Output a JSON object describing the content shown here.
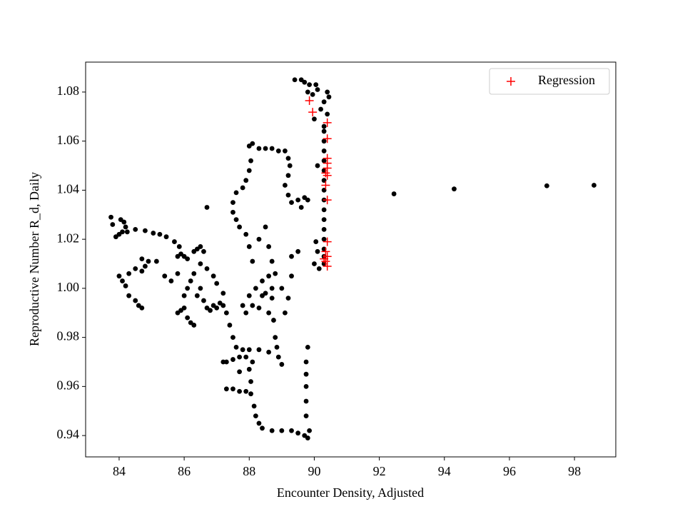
{
  "chart_data": {
    "type": "scatter",
    "x_label": "Encounter Density, Adjusted",
    "y_label": "Reproductive Number R_d, Daily",
    "xlim": [
      82.97,
      99.27
    ],
    "ylim": [
      0.9313,
      1.0922
    ],
    "xticks": [
      84,
      86,
      88,
      90,
      92,
      94,
      96,
      98
    ],
    "yticks": [
      0.94,
      0.96,
      0.98,
      {
        "value": 1.0,
        "label": "1.00"
      },
      1.02,
      1.04,
      1.06,
      1.08
    ],
    "legend": "upper right",
    "series": [
      {
        "color": "#000000",
        "marker": "circle",
        "x": [
          89.4,
          89.6,
          89.7,
          89.85,
          90.05,
          90.1,
          89.95,
          89.8,
          90.4,
          90.45,
          90.3,
          90.2,
          90.4,
          90.0,
          90.3,
          90.3,
          90.3,
          90.3,
          90.3,
          90.3,
          90.3,
          90.3,
          90.3,
          90.3,
          90.3,
          90.3,
          90.3,
          90.3,
          90.3,
          90.3,
          92.45,
          94.3,
          97.15,
          98.6,
          83.75,
          83.8,
          83.9,
          84.0,
          84.05,
          84.15,
          84.2,
          84.25,
          84.1,
          84.5,
          84.8,
          85.05,
          85.25,
          85.45,
          85.7,
          85.85,
          84.0,
          84.1,
          84.2,
          84.3,
          84.3,
          84.5,
          84.6,
          84.7,
          84.5,
          84.7,
          84.8,
          84.9,
          84.7,
          85.15,
          85.4,
          85.6,
          85.8,
          85.8,
          85.9,
          86.0,
          86.1,
          86.3,
          86.4,
          86.5,
          86.6,
          86.7,
          86.3,
          86.2,
          86.1,
          86.0,
          85.9,
          85.8,
          86.0,
          86.1,
          86.2,
          86.3,
          86.4,
          86.5,
          86.6,
          86.7,
          86.8,
          86.9,
          87.0,
          87.1,
          87.2,
          87.3,
          86.9,
          87.0,
          87.2,
          86.7,
          86.5,
          87.4,
          87.5,
          87.6,
          87.7,
          87.5,
          87.3,
          87.2,
          87.8,
          88.0,
          87.9,
          87.7,
          87.3,
          87.5,
          87.7,
          87.9,
          88.05,
          88.15,
          88.2,
          88.3,
          88.4,
          88.7,
          89.0,
          89.3,
          89.5,
          89.7,
          89.8,
          89.85,
          89.75,
          89.75,
          89.75,
          89.75,
          89.75,
          89.8,
          88.05,
          88.0,
          88.1,
          88.3,
          88.6,
          88.9,
          89.0,
          88.85,
          88.8,
          88.75,
          88.6,
          88.3,
          88.1,
          87.9,
          87.8,
          88.0,
          88.2,
          88.4,
          88.6,
          88.8,
          88.7,
          88.5,
          88.4,
          88.7,
          89.0,
          89.2,
          89.3,
          89.1,
          89.3,
          89.5,
          88.7,
          88.6,
          88.5,
          88.3,
          88.1,
          88.0,
          87.9,
          87.7,
          87.6,
          87.5,
          87.5,
          87.6,
          87.8,
          87.9,
          88.0,
          88.05,
          88.0,
          88.1,
          88.3,
          88.5,
          88.7,
          88.9,
          89.1,
          89.2,
          89.25,
          89.2,
          89.1,
          89.2,
          89.3,
          89.5,
          89.7,
          89.8,
          89.6,
          90.1,
          90.0,
          90.15,
          90.1,
          90.05
        ],
        "values": [
          1.085,
          1.085,
          1.084,
          1.083,
          1.083,
          1.081,
          1.079,
          1.08,
          1.08,
          1.078,
          1.076,
          1.073,
          1.071,
          1.069,
          1.066,
          1.064,
          1.06,
          1.056,
          1.052,
          1.048,
          1.044,
          1.04,
          1.036,
          1.032,
          1.028,
          1.024,
          1.02,
          1.016,
          1.013,
          1.01,
          1.0385,
          1.0405,
          1.0418,
          1.042,
          1.029,
          1.026,
          1.021,
          1.022,
          1.028,
          1.027,
          1.025,
          1.023,
          1.023,
          1.024,
          1.0235,
          1.0225,
          1.022,
          1.021,
          1.019,
          1.017,
          1.005,
          1.003,
          1.001,
          1.006,
          0.997,
          0.995,
          0.993,
          0.992,
          1.008,
          1.012,
          1.009,
          1.011,
          1.007,
          1.011,
          1.005,
          1.003,
          1.006,
          1.013,
          1.014,
          1.013,
          1.012,
          1.015,
          1.016,
          1.017,
          1.015,
          1.033,
          1.006,
          1.003,
          1.0,
          0.997,
          0.991,
          0.99,
          0.992,
          0.988,
          0.986,
          0.985,
          0.997,
          1.0,
          0.995,
          0.992,
          0.991,
          0.993,
          0.992,
          0.994,
          0.993,
          0.99,
          1.005,
          1.002,
          0.998,
          1.008,
          1.01,
          0.985,
          0.98,
          0.976,
          0.972,
          0.971,
          0.97,
          0.97,
          0.975,
          0.975,
          0.972,
          0.966,
          0.959,
          0.959,
          0.958,
          0.958,
          0.957,
          0.952,
          0.948,
          0.945,
          0.943,
          0.942,
          0.942,
          0.942,
          0.941,
          0.94,
          0.939,
          0.942,
          0.948,
          0.954,
          0.96,
          0.965,
          0.97,
          0.976,
          0.962,
          0.967,
          0.97,
          0.975,
          0.974,
          0.972,
          0.969,
          0.976,
          0.98,
          0.987,
          0.99,
          0.992,
          0.993,
          0.99,
          0.993,
          0.997,
          1.0,
          1.003,
          1.005,
          1.006,
          1.0,
          0.998,
          0.997,
          0.996,
          1.0,
          0.996,
          1.005,
          0.99,
          1.013,
          1.015,
          1.011,
          1.017,
          1.025,
          1.02,
          1.011,
          1.017,
          1.022,
          1.025,
          1.028,
          1.031,
          1.035,
          1.039,
          1.041,
          1.044,
          1.048,
          1.052,
          1.058,
          1.059,
          1.057,
          1.057,
          1.057,
          1.056,
          1.056,
          1.053,
          1.05,
          1.046,
          1.042,
          1.038,
          1.035,
          1.036,
          1.037,
          1.036,
          1.033,
          1.05,
          1.01,
          1.008,
          1.015,
          1.019
        ]
      },
      {
        "name": "Regression",
        "color": "#ff0000",
        "marker": "plus",
        "x": [
          89.85,
          89.95,
          90.4,
          90.4,
          90.4,
          90.4,
          90.4,
          90.35,
          90.4,
          90.35,
          90.4,
          90.4,
          90.35,
          90.4,
          90.35,
          90.4,
          90.3
        ],
        "values": [
          1.0765,
          1.0718,
          1.0675,
          1.061,
          1.053,
          1.051,
          1.049,
          1.047,
          1.046,
          1.042,
          1.036,
          1.019,
          1.015,
          1.013,
          1.011,
          1.009,
          1.012
        ]
      }
    ]
  }
}
